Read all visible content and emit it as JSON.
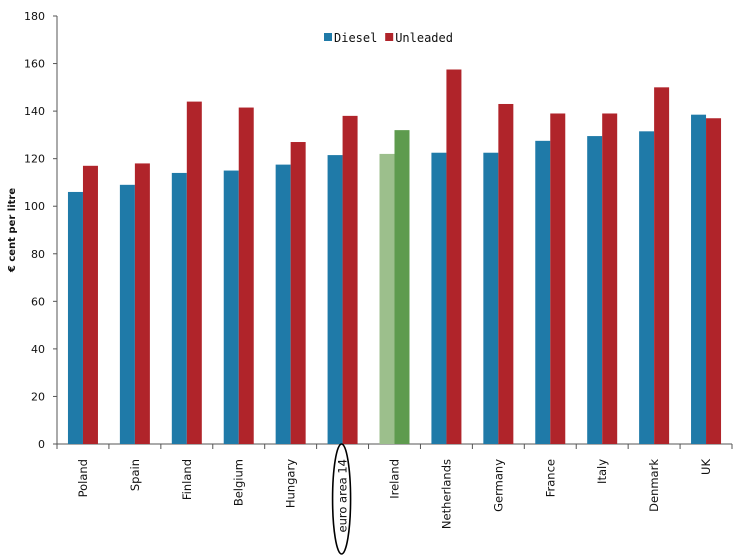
{
  "chart_data": {
    "type": "bar",
    "ylabel": "€ cent per litre",
    "ylim": [
      0,
      180
    ],
    "yticks": [
      0,
      20,
      40,
      60,
      80,
      100,
      120,
      140,
      160,
      180
    ],
    "grid": false,
    "legend_position": "top-center",
    "categories": [
      "Poland",
      "Spain",
      "Finland",
      "Belgium",
      "Hungary",
      "euro area 14",
      "Ireland",
      "Netherlands",
      "Germany",
      "France",
      "Italy",
      "Denmark",
      "UK"
    ],
    "series": [
      {
        "name": "Diesel",
        "color": "#1f7aa8",
        "values": [
          106,
          109,
          114,
          115,
          117.5,
          121.5,
          122,
          122.5,
          122.5,
          127.5,
          129.5,
          131.5,
          138.5
        ]
      },
      {
        "name": "Unleaded",
        "color": "#b0242a",
        "values": [
          117,
          118,
          144,
          141.5,
          127,
          138,
          132,
          157.5,
          143,
          139,
          139,
          150,
          137
        ]
      }
    ],
    "highlight": {
      "category": "Ireland",
      "colors": {
        "Diesel": "#9cbf8c",
        "Unleaded": "#5e9b4e"
      }
    },
    "annotation": {
      "type": "ellipse",
      "category": "euro area 14"
    }
  }
}
